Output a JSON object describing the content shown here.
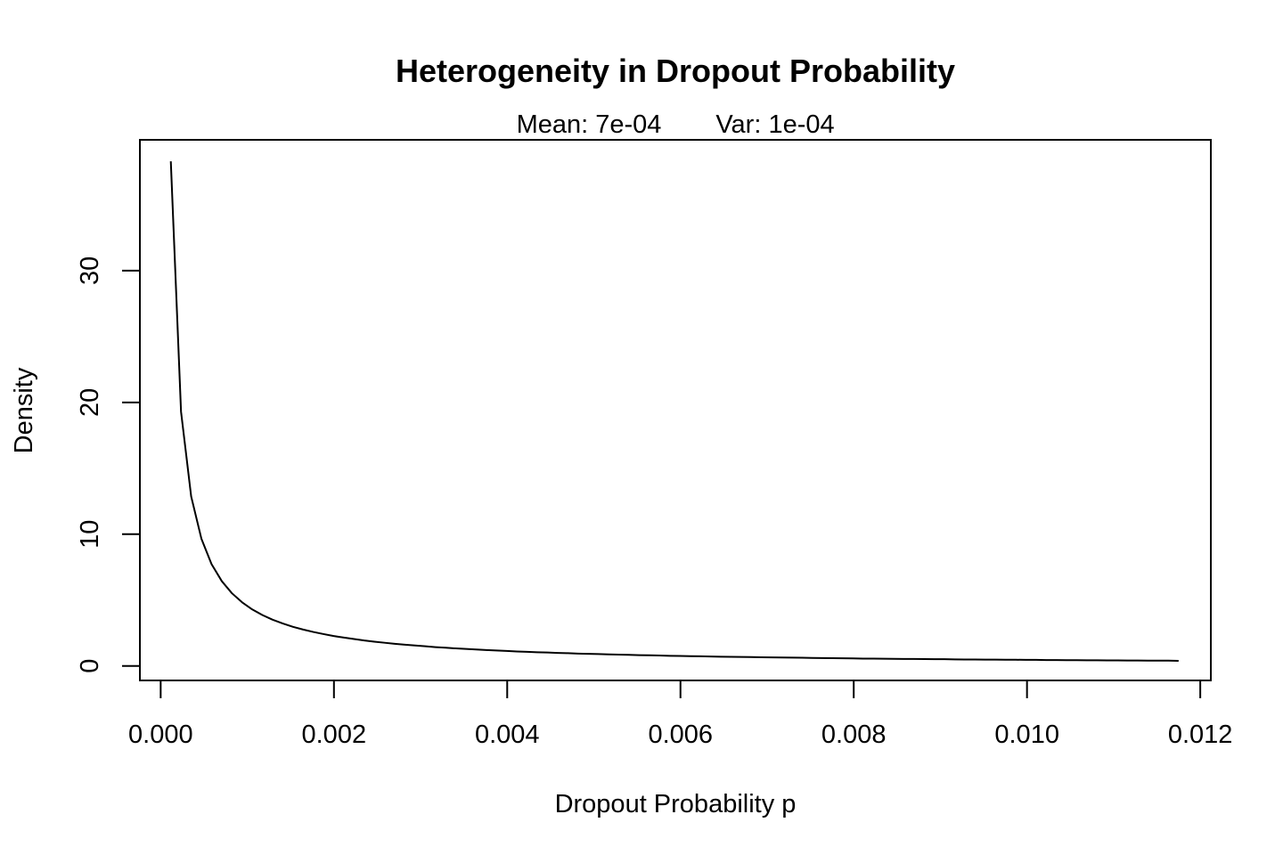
{
  "chart_data": {
    "type": "line",
    "title": "Heterogeneity in Dropout Probability",
    "subtitle": {
      "mean": "Mean: 7e-04",
      "var": "Var: 1e-04"
    },
    "xlabel": "Dropout Probability p",
    "ylabel": "Density",
    "xlim": [
      -0.00024,
      0.012122
    ],
    "ylim": [
      -1.1,
      39.93
    ],
    "x_ticks": [
      0.0,
      0.002,
      0.004,
      0.006,
      0.008,
      0.01,
      0.012
    ],
    "x_tick_labels": [
      "0.000",
      "0.002",
      "0.004",
      "0.006",
      "0.008",
      "0.010",
      "0.012"
    ],
    "y_ticks": [
      0,
      10,
      20,
      30
    ],
    "y_tick_labels": [
      "0",
      "10",
      "20",
      "30"
    ],
    "grid": false,
    "legend": "none",
    "line_color": "#000000",
    "series": [
      {
        "x": [
          0.000117,
          0.000235,
          0.000352,
          0.00047,
          0.000587,
          0.000705,
          0.000822,
          0.00094,
          0.001057,
          0.001175,
          0.001292,
          0.00141,
          0.001527,
          0.001645,
          0.001762,
          0.00188,
          0.001997,
          0.002115,
          0.002232,
          0.00235,
          0.002467,
          0.002585,
          0.002702,
          0.00282,
          0.002937,
          0.003055,
          0.003172,
          0.00329,
          0.003407,
          0.003525,
          0.003642,
          0.00376,
          0.003877,
          0.003995,
          0.004112,
          0.00423,
          0.004347,
          0.004465,
          0.004582,
          0.0047,
          0.004817,
          0.004935,
          0.005052,
          0.00517,
          0.005287,
          0.005405,
          0.005522,
          0.00564,
          0.005757,
          0.005875,
          0.005992,
          0.00611,
          0.006227,
          0.006345,
          0.006462,
          0.00658,
          0.006697,
          0.006815,
          0.006932,
          0.00705,
          0.007167,
          0.007285,
          0.007402,
          0.00752,
          0.007637,
          0.007755,
          0.007872,
          0.00799,
          0.008107,
          0.008225,
          0.008342,
          0.00846,
          0.008577,
          0.008695,
          0.008812,
          0.00893,
          0.009047,
          0.009165,
          0.009282,
          0.0094,
          0.009517,
          0.009635,
          0.009752,
          0.00987,
          0.009987,
          0.010105,
          0.010222,
          0.01034,
          0.010457,
          0.010575,
          0.010692,
          0.01081,
          0.010927,
          0.011045,
          0.011162,
          0.01128,
          0.011397,
          0.011515,
          0.011632,
          0.01175
        ],
        "y": [
          38.3,
          19.3,
          12.87,
          9.66,
          7.73,
          6.44,
          5.52,
          4.83,
          4.29,
          3.86,
          3.51,
          3.22,
          2.97,
          2.76,
          2.58,
          2.42,
          2.27,
          2.15,
          2.04,
          1.93,
          1.84,
          1.76,
          1.68,
          1.61,
          1.55,
          1.49,
          1.43,
          1.38,
          1.33,
          1.29,
          1.25,
          1.21,
          1.17,
          1.14,
          1.1,
          1.07,
          1.04,
          1.02,
          0.99,
          0.97,
          0.94,
          0.92,
          0.9,
          0.88,
          0.86,
          0.84,
          0.82,
          0.81,
          0.79,
          0.77,
          0.76,
          0.74,
          0.73,
          0.72,
          0.7,
          0.69,
          0.68,
          0.67,
          0.66,
          0.65,
          0.64,
          0.63,
          0.62,
          0.61,
          0.6,
          0.59,
          0.58,
          0.57,
          0.56,
          0.56,
          0.55,
          0.54,
          0.53,
          0.53,
          0.52,
          0.51,
          0.51,
          0.5,
          0.49,
          0.49,
          0.48,
          0.48,
          0.47,
          0.47,
          0.46,
          0.46,
          0.45,
          0.45,
          0.44,
          0.44,
          0.43,
          0.43,
          0.42,
          0.42,
          0.41,
          0.41,
          0.4,
          0.4,
          0.4,
          0.39
        ]
      }
    ]
  }
}
